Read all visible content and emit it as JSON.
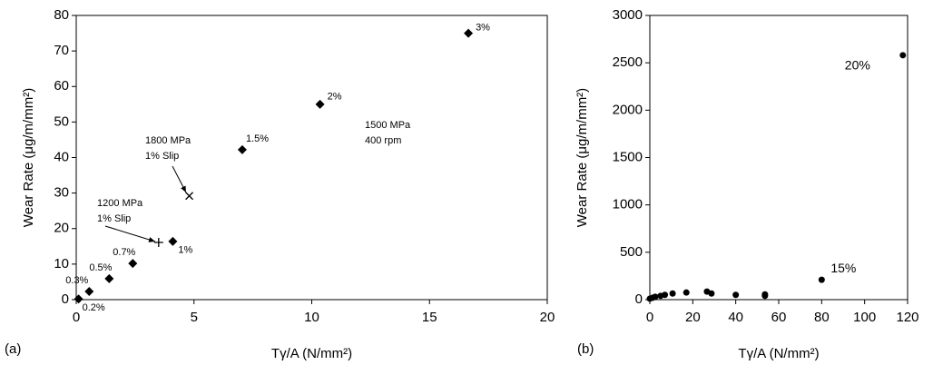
{
  "chart_data": [
    {
      "type": "scatter",
      "panel_label": "(a)",
      "x_label": "Tγ/A (N/mm²)",
      "y_label": "Wear Rate (μg/m/mm²)",
      "xlim": [
        0,
        20
      ],
      "xticks": [
        0,
        5,
        10,
        15,
        20
      ],
      "ylim": [
        0,
        80
      ],
      "yticks": [
        0,
        10,
        20,
        30,
        40,
        50,
        60,
        70,
        80
      ],
      "color": "#000000",
      "series": [
        {
          "marker": "diamond",
          "x": [
            0.1,
            0.55,
            1.4,
            2.4,
            4.1,
            7.05,
            10.35,
            16.65
          ],
          "values": [
            0.2,
            2.3,
            5.9,
            10.2,
            16.4,
            42.2,
            55,
            75
          ],
          "point_labels": [
            "0.2%",
            "0.3%",
            "0.5%",
            "0.7%",
            "1%",
            "1.5%",
            "2%",
            "3%"
          ]
        },
        {
          "marker": "plus",
          "x": [
            3.5
          ],
          "values": [
            16.1
          ]
        },
        {
          "marker": "cross",
          "x": [
            4.8
          ],
          "values": [
            29.2
          ]
        }
      ],
      "annotations": [
        {
          "lines": [
            "1500 MPa",
            "400 rpm"
          ]
        },
        {
          "lines": [
            "1800 MPa",
            "1% Slip"
          ]
        },
        {
          "lines": [
            "1200 MPa",
            "1% Slip"
          ]
        }
      ]
    },
    {
      "type": "scatter",
      "panel_label": "(b)",
      "x_label": "Tγ/A (N/mm²)",
      "y_label": "Wear Rate (μg/m/mm²)",
      "xlim": [
        0,
        120
      ],
      "xticks": [
        0,
        20,
        40,
        60,
        80,
        100,
        120
      ],
      "ylim": [
        0,
        3000
      ],
      "yticks": [
        0,
        500,
        1000,
        1500,
        2000,
        2500,
        3000
      ],
      "color": "#000000",
      "series": [
        {
          "marker": "circle",
          "x": [
            0,
            1.3,
            2.5,
            5,
            7,
            10.6,
            17,
            26.6,
            28.7,
            40,
            53.6,
            53.6,
            80,
            117.8
          ],
          "values": [
            10,
            20,
            30,
            40,
            50,
            65,
            75,
            85,
            65,
            50,
            40,
            55,
            210,
            2580
          ],
          "point_labels": [
            null,
            null,
            null,
            null,
            null,
            null,
            null,
            null,
            null,
            null,
            null,
            null,
            "15%",
            "20%"
          ]
        }
      ]
    }
  ]
}
